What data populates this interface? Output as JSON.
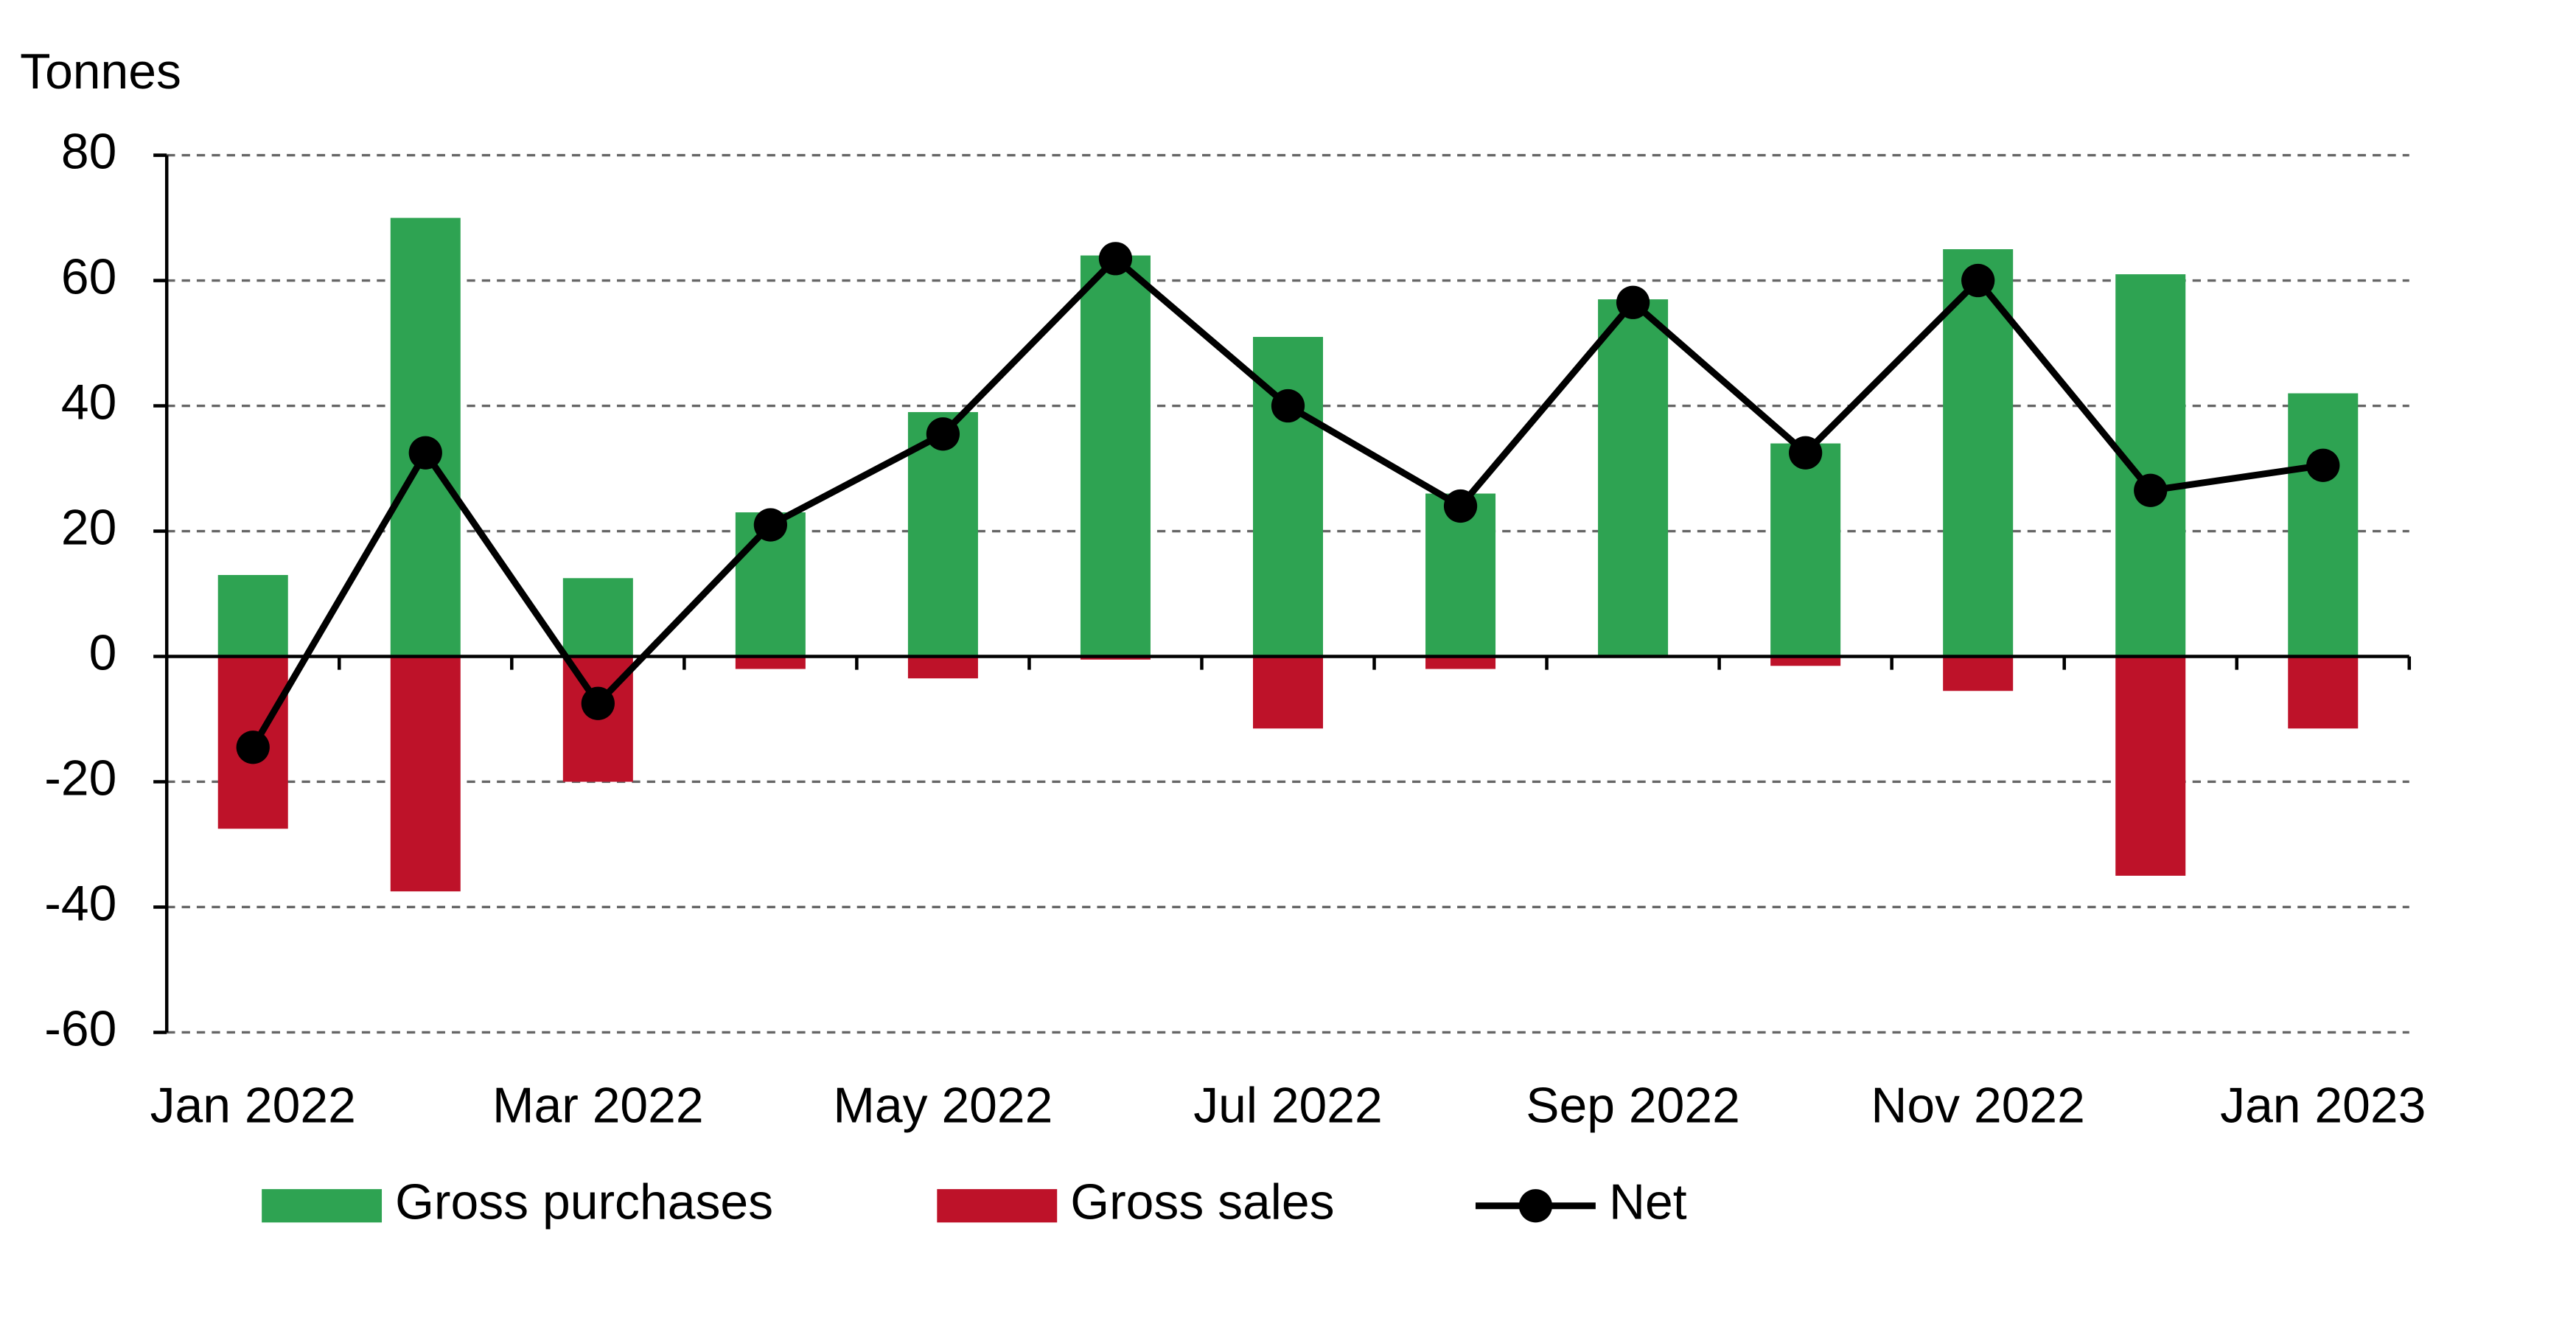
{
  "chart_data": {
    "type": "bar-line",
    "y_label": "Tonnes",
    "categories": [
      "Jan 2022",
      null,
      "Mar 2022",
      null,
      "May 2022",
      null,
      "Jul 2022",
      null,
      "Sep 2022",
      null,
      "Nov 2022",
      null,
      "Jan 2023"
    ],
    "series": [
      {
        "name": "Gross purchases",
        "type": "bar",
        "color": "#2ea352",
        "values": [
          13,
          70,
          12.5,
          23,
          39,
          64,
          51,
          26,
          57,
          34,
          65,
          61,
          42
        ]
      },
      {
        "name": "Gross sales",
        "type": "bar",
        "color": "#be1229",
        "values": [
          -27.5,
          -37.5,
          -20,
          -2,
          -3.5,
          -0.5,
          -11.5,
          -2,
          0,
          -1.5,
          -5.5,
          -35,
          -11.5
        ]
      },
      {
        "name": "Net",
        "type": "line",
        "color": "#000000",
        "values": [
          -14.5,
          32.5,
          -7.5,
          21,
          35.5,
          63.5,
          40,
          24,
          56.5,
          32.5,
          60,
          26.5,
          30.5
        ]
      }
    ],
    "ylim": [
      -60,
      80
    ],
    "yticks": [
      -60,
      -40,
      -20,
      0,
      20,
      40,
      60,
      80
    ],
    "grid": true,
    "legend": "bottom"
  }
}
